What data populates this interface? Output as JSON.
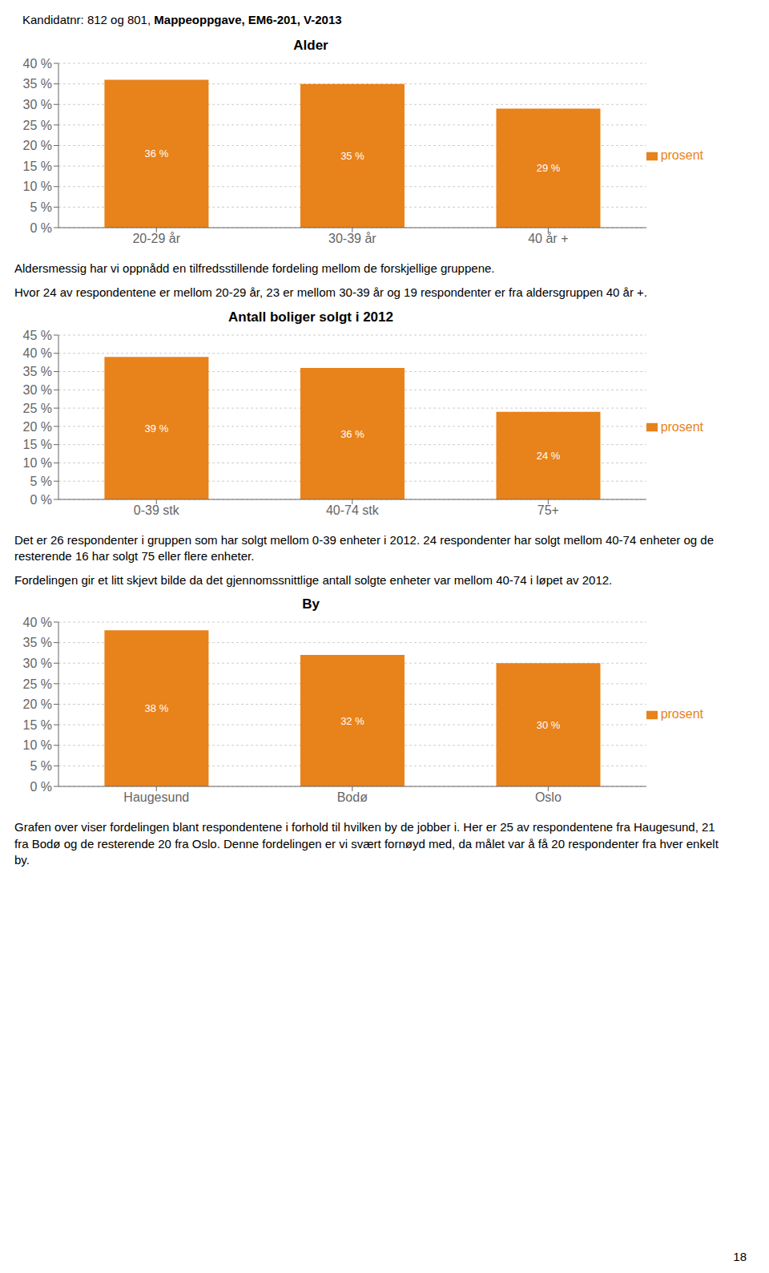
{
  "header": [
    "Kandidatnr: 812 og 801,",
    "Mappeoppgave, EM6-201, V-2013"
  ],
  "page_number": 18,
  "chart_data": [
    {
      "type": "bar",
      "title": "Alder",
      "categories": [
        "20-29 år",
        "30-39 år",
        "40 år +"
      ],
      "series": [
        {
          "name": "prosent",
          "color": "#E8821A",
          "values": [
            36,
            35,
            29
          ],
          "value_labels": [
            "36 %",
            "35 %",
            "29 %"
          ]
        }
      ],
      "data_labels": true,
      "ylim": [
        0,
        40
      ],
      "yticks": [
        {
          "value": 0,
          "label": "0 %"
        },
        {
          "value": 5,
          "label": "5 %"
        },
        {
          "value": 10,
          "label": "10 %"
        },
        {
          "value": 15,
          "label": "15 %"
        },
        {
          "value": 20,
          "label": "20 %"
        },
        {
          "value": 25,
          "label": "25 %"
        },
        {
          "value": 30,
          "label": "30 %"
        },
        {
          "value": 35,
          "label": "35 %"
        },
        {
          "value": 40,
          "label": "40 %"
        }
      ],
      "grid": true,
      "legend": "right",
      "annotations": [
        "Aldersmessig har vi oppnådd en tilfredsstillende fordeling mellom de forskjellige gruppene.",
        "Hvor 24 av respondentene er mellom 20-29 år, 23 er mellom 30-39 år og 19 respondenter er fra aldersgruppen 40 år +."
      ]
    },
    {
      "type": "bar",
      "title": "Antall boliger solgt i 2012",
      "categories": [
        "0-39 stk",
        "40-74 stk",
        "75+"
      ],
      "series": [
        {
          "name": "prosent",
          "color": "#E8821A",
          "values": [
            39,
            36,
            24
          ],
          "value_labels": [
            "39 %",
            "36 %",
            "24 %"
          ]
        }
      ],
      "data_labels": true,
      "ylim": [
        0,
        45
      ],
      "yticks": [
        {
          "value": 0,
          "label": "0 %"
        },
        {
          "value": 5,
          "label": "5 %"
        },
        {
          "value": 10,
          "label": "10 %"
        },
        {
          "value": 15,
          "label": "15 %"
        },
        {
          "value": 20,
          "label": "20 %"
        },
        {
          "value": 25,
          "label": "25 %"
        },
        {
          "value": 30,
          "label": "30 %"
        },
        {
          "value": 35,
          "label": "35 %"
        },
        {
          "value": 40,
          "label": "40 %"
        },
        {
          "value": 45,
          "label": "45 %"
        }
      ],
      "grid": true,
      "legend": "right",
      "annotations": [
        "Det er 26 respondenter i gruppen som har solgt mellom 0-39 enheter i 2012. 24 respondenter har solgt mellom 40-74 enheter og de resterende 16 har solgt 75 eller flere enheter.",
        "Fordelingen gir et litt skjevt bilde da det gjennomssnittlige antall solgte enheter var mellom 40-74 i løpet av 2012."
      ]
    },
    {
      "type": "bar",
      "title": "By",
      "categories": [
        "Haugesund",
        "Bodø",
        "Oslo"
      ],
      "series": [
        {
          "name": "prosent",
          "color": "#E8821A",
          "values": [
            38,
            32,
            30
          ],
          "value_labels": [
            "38 %",
            "32 %",
            "30 %"
          ]
        }
      ],
      "data_labels": true,
      "ylim": [
        0,
        40
      ],
      "yticks": [
        {
          "value": 0,
          "label": "0 %"
        },
        {
          "value": 5,
          "label": "5 %"
        },
        {
          "value": 10,
          "label": "10 %"
        },
        {
          "value": 15,
          "label": "15 %"
        },
        {
          "value": 20,
          "label": "20 %"
        },
        {
          "value": 25,
          "label": "25 %"
        },
        {
          "value": 30,
          "label": "30 %"
        },
        {
          "value": 35,
          "label": "35 %"
        },
        {
          "value": 40,
          "label": "40 %"
        }
      ],
      "grid": true,
      "legend": "right",
      "annotations": [
        "Grafen over viser fordelingen blant respondentene i forhold til hvilken by de jobber i. Her er 25 av respondentene fra Haugesund, 21 fra Bodø og de resterende 20 fra Oslo. Denne fordelingen er vi svært fornøyd med, da målet var å få 20 respondenter fra hver enkelt by."
      ]
    }
  ]
}
